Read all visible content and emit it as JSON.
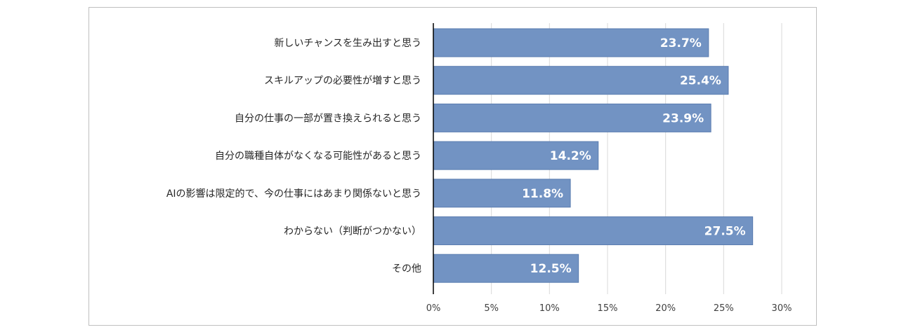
{
  "chart_data": {
    "type": "bar",
    "orientation": "horizontal",
    "categories": [
      "新しいチャンスを生み出すと思う",
      "スキルアップの必要性が増すと思う",
      "自分の仕事の一部が置き換えられると思う",
      "自分の職種自体がなくなる可能性があると思う",
      "AIの影響は限定的で、今の仕事にはあまり関係ないと思う",
      "わからない（判断がつかない）",
      "その他"
    ],
    "values": [
      23.7,
      25.4,
      23.9,
      14.2,
      11.8,
      27.5,
      12.5
    ],
    "data_labels": [
      "23.7%",
      "25.4%",
      "23.9%",
      "14.2%",
      "11.8%",
      "27.5%",
      "12.5%"
    ],
    "xlim": [
      0,
      30
    ],
    "xticks": [
      0,
      5,
      10,
      15,
      20,
      25,
      30
    ],
    "xtick_labels": [
      "0%",
      "5%",
      "10%",
      "15%",
      "20%",
      "25%",
      "30%"
    ],
    "grid": "vertical",
    "legend": "none",
    "bar_color": "#7293c3",
    "bar_edge_color": "#5b7db0",
    "grid_color": "#d9d9d9",
    "axis_color": "#000000"
  }
}
